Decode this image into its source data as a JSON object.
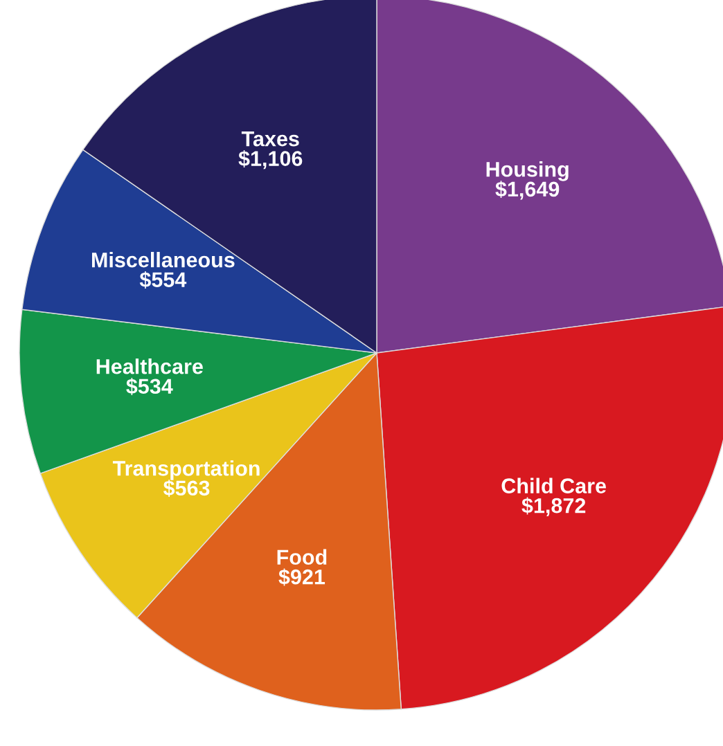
{
  "chart_data": {
    "type": "pie",
    "categories": [
      "Housing",
      "Child Care",
      "Food",
      "Transportation",
      "Healthcare",
      "Miscellaneous",
      "Taxes"
    ],
    "values": [
      1649,
      1872,
      921,
      563,
      534,
      554,
      1106
    ],
    "value_labels": [
      "$1,649",
      "$1,872",
      "$921",
      "$563",
      "$534",
      "$554",
      "$1,106"
    ],
    "colors": [
      "#773a8c",
      "#d81920",
      "#df611d",
      "#eac41b",
      "#13954a",
      "#1f3d93",
      "#231e5a"
    ]
  }
}
